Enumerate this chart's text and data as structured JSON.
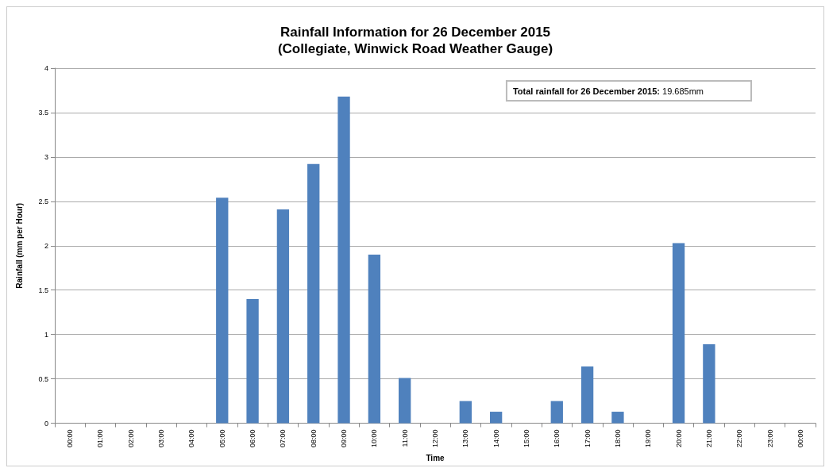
{
  "chart_data": {
    "type": "bar",
    "title": "Rainfall Information for 26 December 2015",
    "subtitle": "(Collegiate, Winwick Road Weather Gauge)",
    "xlabel": "Time",
    "ylabel": "Rainfall (mm per Hour)",
    "categories": [
      "00:00",
      "01:00",
      "02:00",
      "03:00",
      "04:00",
      "05:00",
      "06:00",
      "07:00",
      "08:00",
      "09:00",
      "10:00",
      "11:00",
      "12:00",
      "13:00",
      "14:00",
      "15:00",
      "16:00",
      "17:00",
      "18:00",
      "19:00",
      "20:00",
      "21:00",
      "22:00",
      "23:00",
      "00:00"
    ],
    "values": [
      0,
      0,
      0,
      0,
      0,
      2.54,
      1.4,
      2.41,
      2.92,
      3.68,
      1.9,
      0.51,
      0,
      0.25,
      0.13,
      0,
      0.25,
      0.64,
      0.13,
      0,
      2.03,
      0.89,
      0,
      0,
      0
    ],
    "color": "#4f81bd",
    "ylim": [
      0,
      4
    ],
    "yticks": [
      0,
      0.5,
      1,
      1.5,
      2,
      2.5,
      3,
      3.5,
      4
    ],
    "grid": "y",
    "annotations": [
      "Total rainfall for 26 December 2015: 19.685mm"
    ]
  }
}
